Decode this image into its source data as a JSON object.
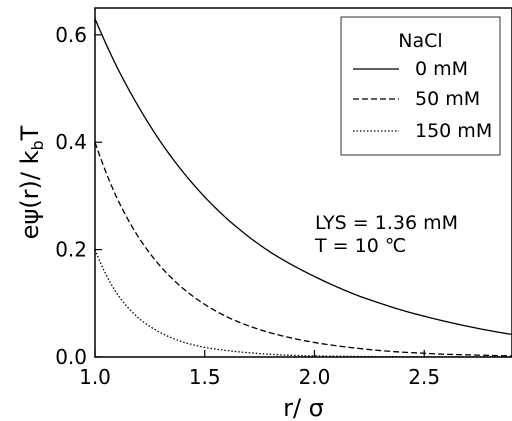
{
  "chart_data": {
    "type": "line",
    "title": "",
    "xlabel": "r/ σ",
    "ylabel_main": "eψ(r)/ k",
    "ylabel_sub": "b",
    "ylabel_tail": "T",
    "xlim": [
      1.0,
      2.9
    ],
    "ylim": [
      0.0,
      0.65
    ],
    "x_ticks": [
      1.0,
      1.5,
      2.0,
      2.5
    ],
    "x_tick_labels": [
      "1.0",
      "1.5",
      "2.0",
      "2.5"
    ],
    "y_ticks": [
      0.0,
      0.2,
      0.4,
      0.6
    ],
    "y_tick_labels": [
      "0.0",
      "0.2",
      "0.4",
      "0.6"
    ],
    "grid": false,
    "legend": {
      "title": "NaCl",
      "position": "top-right"
    },
    "annotations": [
      "LYS = 1.36 mM",
      "T = 10 ℃"
    ],
    "series": [
      {
        "name": "0 mM",
        "line_style": "solid",
        "color": "#000000",
        "x": [
          1.0,
          1.1,
          1.2,
          1.3,
          1.4,
          1.5,
          1.6,
          1.7,
          1.8,
          1.9,
          2.0,
          2.1,
          2.2,
          2.3,
          2.4,
          2.5,
          2.6,
          2.7,
          2.8,
          2.9
        ],
        "values": [
          0.63,
          0.54,
          0.465,
          0.4,
          0.345,
          0.298,
          0.258,
          0.224,
          0.195,
          0.171,
          0.15,
          0.131,
          0.114,
          0.1,
          0.087,
          0.076,
          0.066,
          0.057,
          0.049,
          0.042
        ]
      },
      {
        "name": "50 mM",
        "line_style": "dashed",
        "color": "#000000",
        "x": [
          1.0,
          1.1,
          1.2,
          1.3,
          1.4,
          1.5,
          1.6,
          1.7,
          1.8,
          1.9,
          2.0,
          2.1,
          2.2,
          2.3,
          2.4,
          2.5,
          2.6,
          2.7,
          2.8,
          2.9
        ],
        "values": [
          0.4,
          0.296,
          0.222,
          0.168,
          0.128,
          0.098,
          0.075,
          0.058,
          0.045,
          0.035,
          0.027,
          0.021,
          0.016,
          0.012,
          0.009,
          0.007,
          0.005,
          0.004,
          0.003,
          0.002
        ]
      },
      {
        "name": "150 mM",
        "line_style": "dotted",
        "color": "#000000",
        "x": [
          1.0,
          1.1,
          1.2,
          1.3,
          1.4,
          1.5,
          1.6,
          1.7,
          1.8,
          1.9,
          2.0,
          2.1,
          2.2,
          2.3,
          2.4,
          2.5,
          2.6,
          2.7,
          2.8,
          2.9
        ],
        "values": [
          0.2,
          0.118,
          0.072,
          0.045,
          0.028,
          0.018,
          0.012,
          0.008,
          0.005,
          0.003,
          0.002,
          0.0015,
          0.001,
          0.0007,
          0.0005,
          0.0003,
          0.0002,
          0.0001,
          0.0001,
          0.0
        ]
      }
    ]
  }
}
